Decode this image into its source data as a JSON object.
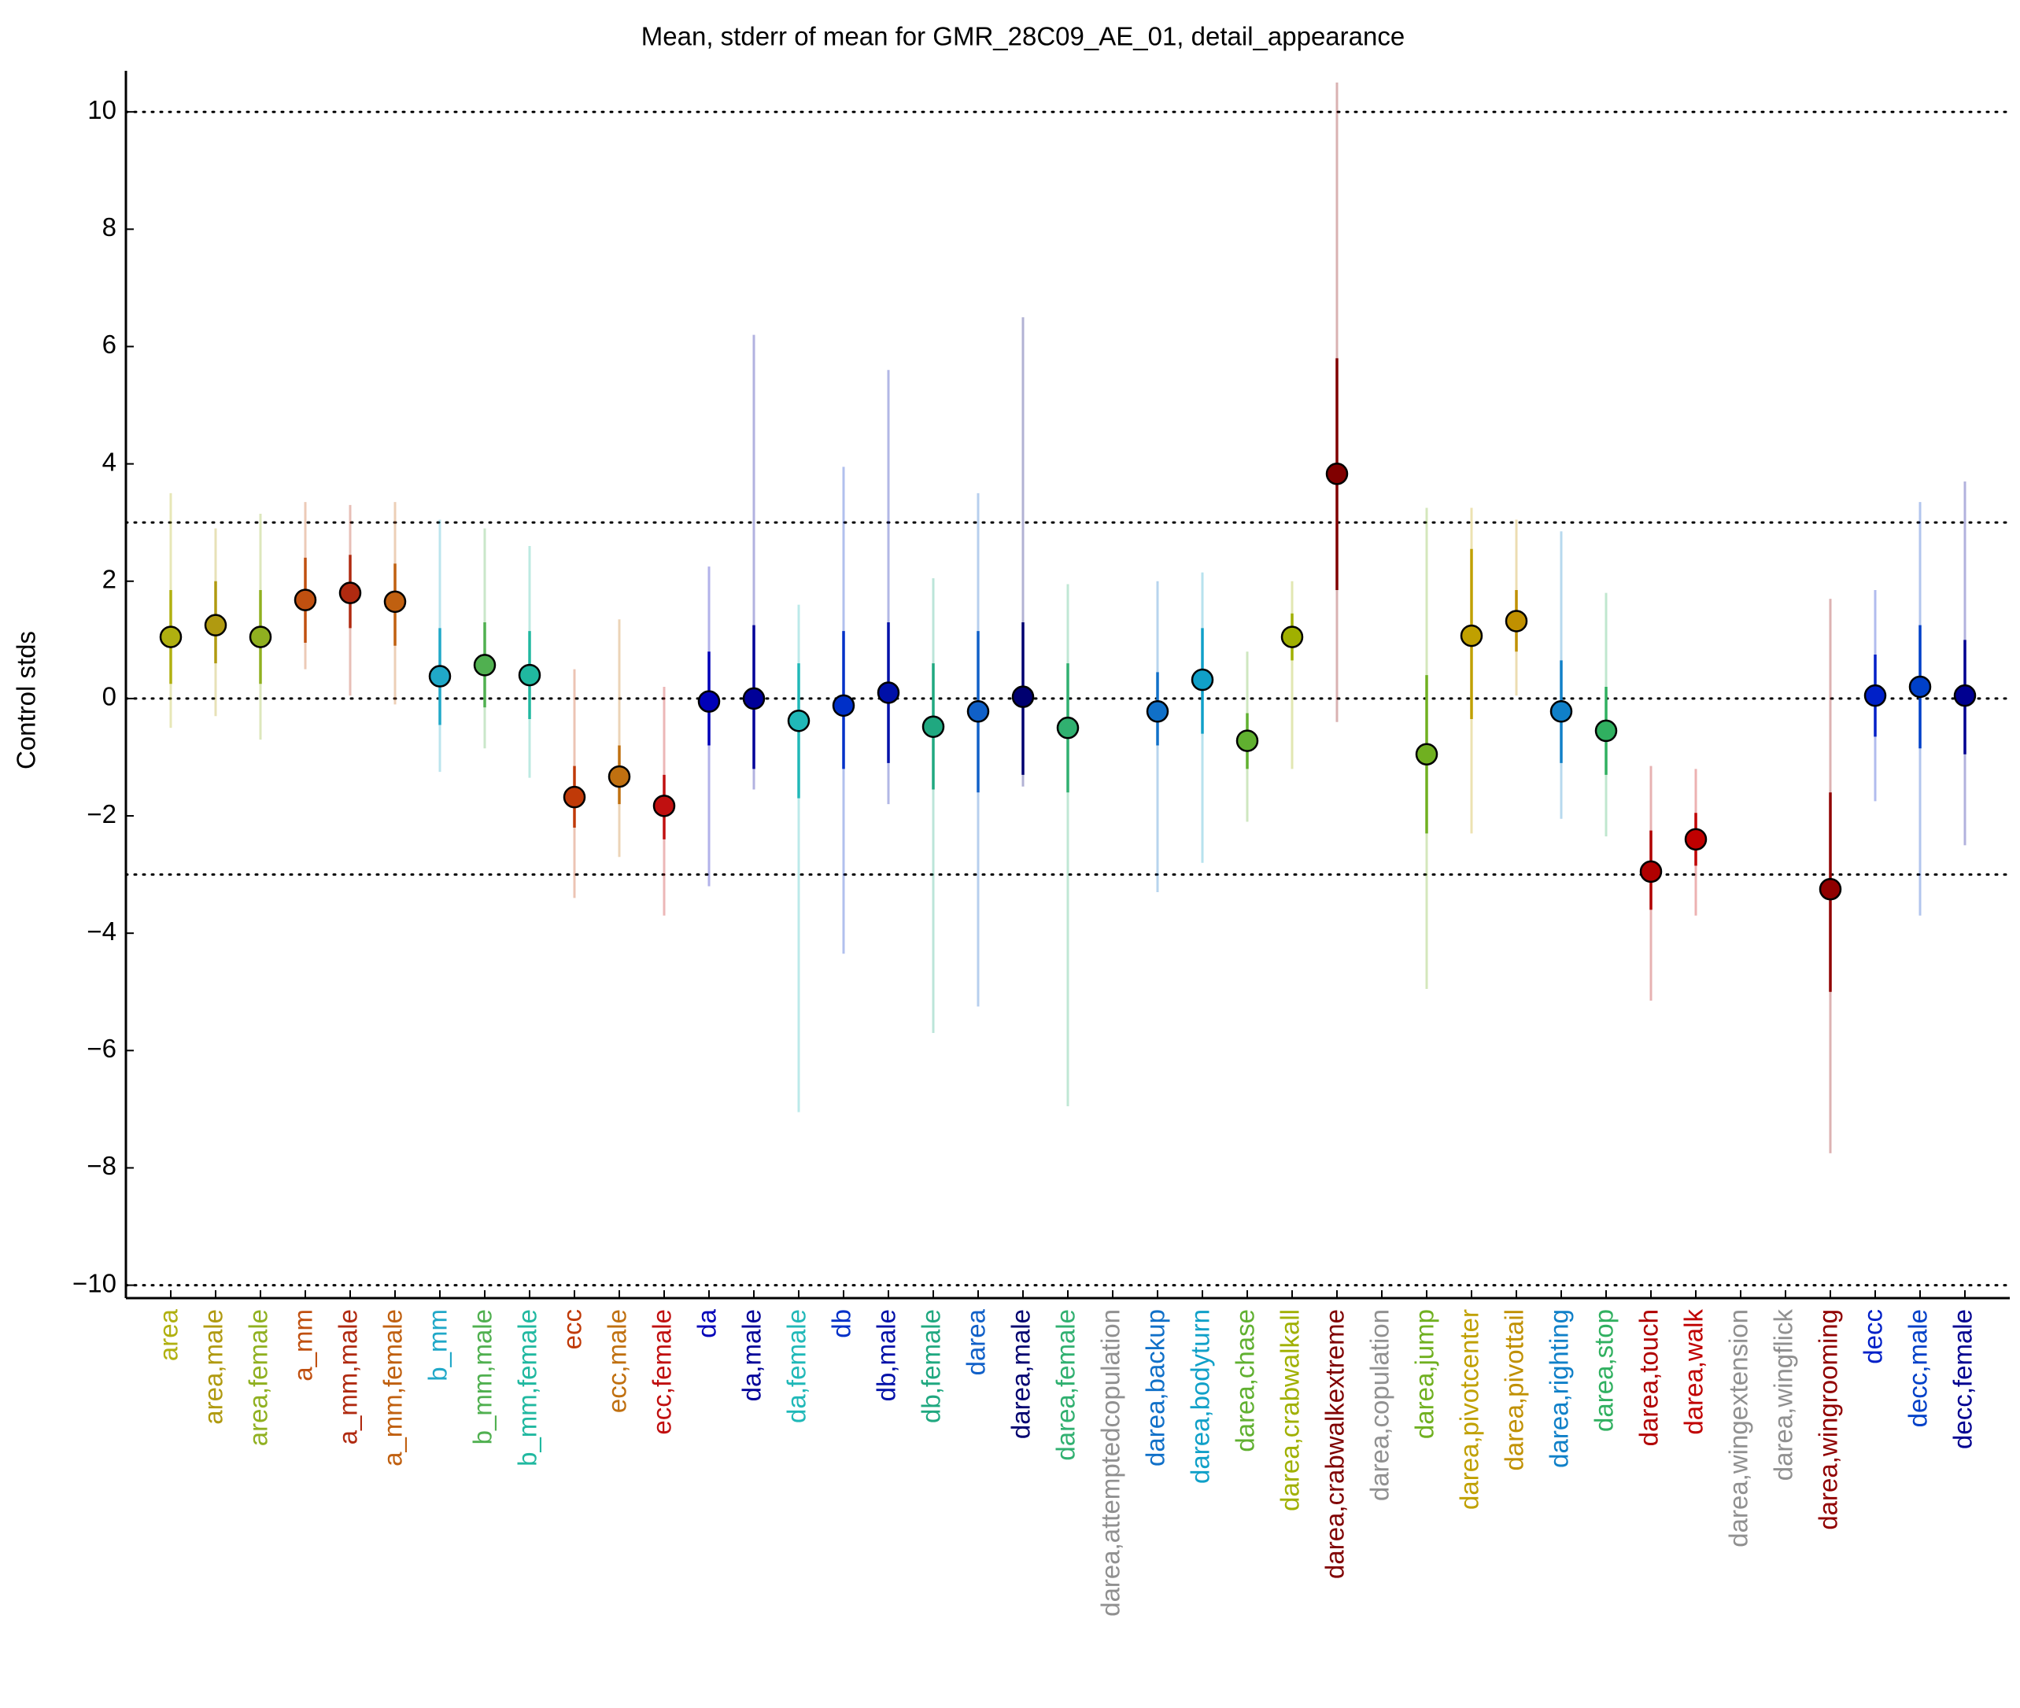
{
  "chart_data": {
    "type": "errorbar",
    "title": "Mean, stderr of mean for GMR_28C09_AE_01, detail_appearance",
    "y_label": "Control stds",
    "categories": [
      "area",
      "area,male",
      "area,female",
      "a_mm",
      "a_mm,male",
      "a_mm,female",
      "b_mm",
      "b_mm,male",
      "b_mm,female",
      "ecc",
      "ecc,male",
      "ecc,female",
      "da",
      "da,male",
      "da,female",
      "db",
      "db,male",
      "db,female",
      "darea",
      "darea,male",
      "darea,female",
      "darea,attemptedcopulation",
      "darea,backup",
      "darea,bodyturn",
      "darea,chase",
      "darea,crabwalkall",
      "darea,crabwalkextreme",
      "darea,copulation",
      "darea,jump",
      "darea,pivotcenter",
      "darea,pivottail",
      "darea,righting",
      "darea,stop",
      "darea,touch",
      "darea,walk",
      "darea,wingextension",
      "darea,wingflick",
      "darea,wingrooming",
      "decc",
      "decc,male",
      "decc,female"
    ],
    "colors": [
      "#b0b010",
      "#b09a10",
      "#90b020",
      "#c05010",
      "#b02a10",
      "#c06010",
      "#20a8c8",
      "#50b050",
      "#20b8a0",
      "#c03a08",
      "#c07010",
      "#c01010",
      "#0000b8",
      "#000098",
      "#20b8b8",
      "#0030c8",
      "#0010a8",
      "#20a880",
      "#1060c8",
      "#000070",
      "#30b070",
      "#909090",
      "#1070c8",
      "#10a0c8",
      "#60b030",
      "#a0b000",
      "#800000",
      "#909090",
      "#70b020",
      "#c0a000",
      "#c09000",
      "#1080c8",
      "#30b060",
      "#b00000",
      "#c00000",
      "#909090",
      "#909090",
      "#900000",
      "#0020c8",
      "#0040c8",
      "#000090"
    ],
    "values": [
      1.05,
      1.25,
      1.05,
      1.68,
      1.8,
      1.65,
      0.38,
      0.57,
      0.4,
      -1.68,
      -1.33,
      -1.83,
      -0.05,
      0,
      -0.38,
      -0.12,
      0.1,
      -0.48,
      -0.22,
      0.03,
      -0.5,
      null,
      -0.22,
      0.32,
      -0.72,
      1.05,
      3.83,
      null,
      -0.95,
      1.07,
      1.32,
      -0.22,
      -0.55,
      -2.95,
      -2.4,
      null,
      null,
      -3.25,
      0.05,
      0.2,
      0.05
    ],
    "err_low": [
      0.25,
      0.6,
      0.25,
      0.95,
      1.2,
      0.9,
      -0.45,
      -0.15,
      -0.35,
      -2.2,
      -1.8,
      -2.4,
      -0.8,
      -1.2,
      -1.7,
      -1.2,
      -1.1,
      -1.55,
      -1.6,
      -1.3,
      -1.6,
      null,
      -0.8,
      -0.6,
      -1.2,
      0.65,
      1.85,
      null,
      -2.3,
      -0.35,
      0.8,
      -1.1,
      -1.3,
      -3.6,
      -2.85,
      null,
      null,
      -5.0,
      -0.65,
      -0.85,
      -0.95
    ],
    "err_high": [
      1.85,
      2.0,
      1.85,
      2.4,
      2.45,
      2.3,
      1.2,
      1.3,
      1.15,
      -1.15,
      -0.8,
      -1.3,
      0.8,
      1.25,
      0.6,
      1.15,
      1.3,
      0.6,
      1.15,
      1.3,
      0.6,
      null,
      0.45,
      1.2,
      -0.25,
      1.45,
      5.8,
      null,
      0.4,
      2.55,
      1.85,
      0.65,
      0.2,
      -2.25,
      -1.95,
      null,
      null,
      -1.6,
      0.75,
      1.25,
      1.0
    ],
    "range_low": [
      -0.5,
      -0.3,
      -0.7,
      0.5,
      0.05,
      -0.1,
      -1.25,
      -0.85,
      -1.35,
      -3.4,
      -2.7,
      -3.7,
      -3.2,
      -1.55,
      -7.05,
      -4.35,
      -1.8,
      -5.7,
      -5.25,
      -1.5,
      -6.95,
      null,
      -3.3,
      -2.8,
      -2.1,
      -1.2,
      -0.4,
      null,
      -4.95,
      -2.3,
      0.05,
      -2.05,
      -2.35,
      -5.15,
      -3.7,
      null,
      null,
      -7.75,
      -1.75,
      -3.7,
      -2.5
    ],
    "range_high": [
      3.5,
      2.9,
      3.15,
      3.35,
      3.3,
      3.35,
      3.05,
      2.9,
      2.6,
      0.5,
      1.35,
      0.2,
      2.25,
      6.2,
      1.6,
      3.95,
      5.6,
      2.05,
      3.5,
      6.5,
      1.95,
      null,
      2.0,
      2.15,
      0.8,
      2.0,
      10.5,
      null,
      3.25,
      3.25,
      3.05,
      2.85,
      1.8,
      -1.15,
      -1.2,
      null,
      null,
      1.7,
      1.85,
      3.35,
      3.7
    ],
    "xlim": [
      0,
      42
    ],
    "ylim": [
      -10.22,
      10.7
    ],
    "yticks": [
      {
        "value": -10,
        "label": "−10"
      },
      {
        "value": -8,
        "label": "−8"
      },
      {
        "value": -6,
        "label": "−6"
      },
      {
        "value": -4,
        "label": "−4"
      },
      {
        "value": -2,
        "label": "−2"
      },
      0,
      2,
      4,
      6,
      8,
      10
    ],
    "hlines": [
      -10,
      -3,
      0,
      3,
      10
    ]
  }
}
